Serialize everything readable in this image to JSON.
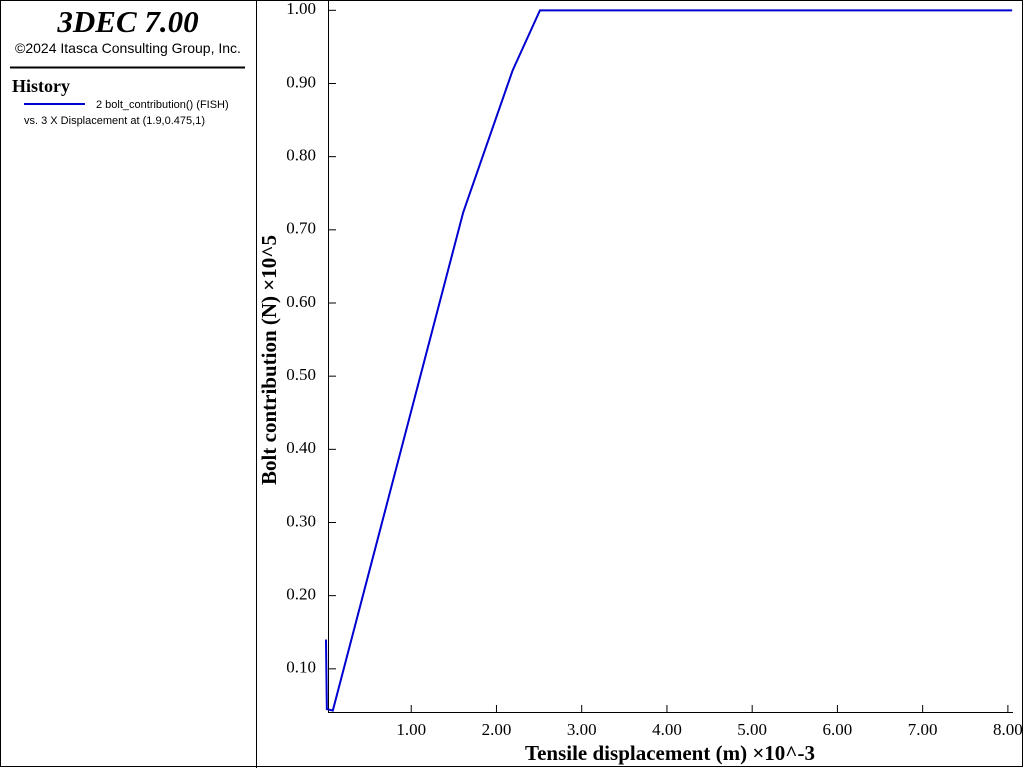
{
  "header": {
    "title": "3DEC 7.00",
    "copyright": "©2024 Itasca Consulting Group, Inc.",
    "section": "History"
  },
  "chart_data": {
    "type": "line",
    "xlabel": "Tensile displacement (m)  ×10^-3",
    "ylabel": "Bolt contribution (N) ×10^5",
    "series": [
      {
        "name": "2 bolt_contribution() (FISH)",
        "subtitle": "vs. 3 X Displacement at (1.9,0.475,1)",
        "color": "#0000d0",
        "x": [
          0,
          0.01,
          0.08,
          1.61,
          2.19,
          2.51,
          4.0,
          5.0,
          6.0,
          7.0,
          8.05
        ],
        "values": [
          0.14,
          0.045,
          0.043,
          0.724,
          0.918,
          1.0,
          1.0,
          1.0,
          1.0,
          1.0,
          1.0
        ]
      }
    ],
    "xlim": [
      0,
      8.06
    ],
    "ylim": [
      0.041,
      1.01
    ],
    "xticks": [
      {
        "value": 1,
        "label": "1.00"
      },
      {
        "value": 2,
        "label": "2.00"
      },
      {
        "value": 3,
        "label": "3.00"
      },
      {
        "value": 4,
        "label": "4.00"
      },
      {
        "value": 5,
        "label": "5.00"
      },
      {
        "value": 6,
        "label": "6.00"
      },
      {
        "value": 7,
        "label": "7.00"
      },
      {
        "value": 8,
        "label": "8.00"
      }
    ],
    "yticks": [
      {
        "value": 0.1,
        "label": "0.10"
      },
      {
        "value": 0.2,
        "label": "0.20"
      },
      {
        "value": 0.3,
        "label": "0.30"
      },
      {
        "value": 0.4,
        "label": "0.40"
      },
      {
        "value": 0.5,
        "label": "0.50"
      },
      {
        "value": 0.6,
        "label": "0.60"
      },
      {
        "value": 0.7,
        "label": "0.70"
      },
      {
        "value": 0.8,
        "label": "0.80"
      },
      {
        "value": 0.9,
        "label": "0.90"
      },
      {
        "value": 1.0,
        "label": "1.00"
      }
    ]
  }
}
